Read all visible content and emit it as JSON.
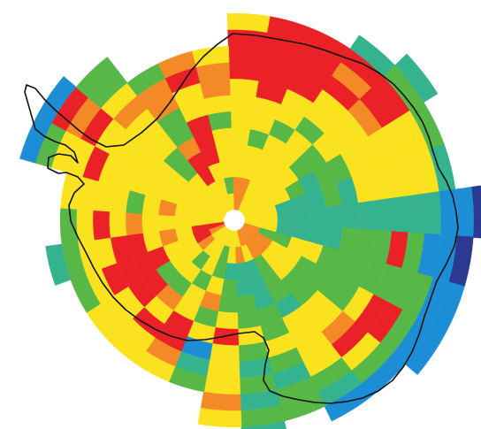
{
  "palette": {
    "yellow": "#fbe21f",
    "red": "#ea2228",
    "orange": "#f48a26",
    "green": "#58b847",
    "teal": "#35b38f",
    "blue": "#1b8ed6",
    "navy": "#2b3990"
  },
  "classes": [
    "red",
    "orange",
    "yellow",
    "green",
    "teal",
    "blue",
    "navy"
  ],
  "sectors": [
    {
      "a0": -92,
      "a1": -80,
      "rings": [
        "orange",
        "orange",
        "yellow",
        "yellow",
        "yellow",
        "yellow",
        "yellow",
        "yellow",
        "red",
        "red",
        "red",
        "yellow"
      ]
    },
    {
      "a0": -80,
      "a1": -68,
      "rings": [
        "orange",
        "orange",
        "yellow",
        "yellow",
        "green",
        "yellow",
        "yellow",
        "red",
        "red",
        "red",
        "red",
        "red"
      ]
    },
    {
      "a0": -68,
      "a1": -56,
      "rings": [
        "yellow",
        "yellow",
        "yellow",
        "yellow",
        "yellow",
        "green",
        "yellow",
        "yellow",
        "red",
        "red",
        "red",
        "red"
      ]
    },
    {
      "a0": -56,
      "a1": -44,
      "rings": [
        "yellow",
        "yellow",
        "yellow",
        "yellow",
        "yellow",
        "yellow",
        "green",
        "yellow",
        "yellow",
        "red",
        "orange",
        "red",
        "teal"
      ]
    },
    {
      "a0": -44,
      "a1": -32,
      "rings": [
        "yellow",
        "yellow",
        "yellow",
        "yellow",
        "green",
        "green",
        "yellow",
        "yellow",
        "yellow",
        "orange",
        "red",
        "red",
        "green",
        "teal"
      ]
    },
    {
      "a0": -32,
      "a1": -20,
      "rings": [
        "yellow",
        "yellow",
        "yellow",
        "green",
        "teal",
        "green",
        "green",
        "yellow",
        "yellow",
        "yellow",
        "yellow",
        "yellow",
        "green"
      ]
    },
    {
      "a0": -20,
      "a1": -8,
      "rings": [
        "yellow",
        "yellow",
        "teal",
        "teal",
        "teal",
        "green",
        "teal",
        "yellow",
        "yellow",
        "yellow",
        "yellow",
        "yellow",
        "teal"
      ]
    },
    {
      "a0": -8,
      "a1": 4,
      "rings": [
        "yellow",
        "yellow",
        "teal",
        "teal",
        "teal",
        "teal",
        "teal",
        "teal",
        "teal",
        "teal",
        "teal",
        "teal",
        "blue",
        "blue",
        "navy"
      ]
    },
    {
      "a0": 4,
      "a1": 16,
      "rings": [
        "yellow",
        "yellow",
        "teal",
        "teal",
        "teal",
        "teal",
        "green",
        "green",
        "green",
        "red",
        "green",
        "blue",
        "blue",
        "navy"
      ]
    },
    {
      "a0": 16,
      "a1": 28,
      "rings": [
        "orange",
        "green",
        "green",
        "yellow",
        "yellow",
        "green",
        "green",
        "green",
        "green",
        "green",
        "green",
        "green",
        "blue",
        "blue"
      ]
    },
    {
      "a0": 28,
      "a1": 40,
      "rings": [
        "orange",
        "orange",
        "yellow",
        "yellow",
        "green",
        "green",
        "green",
        "green",
        "yellow",
        "red",
        "red",
        "green",
        "blue",
        "blue"
      ]
    },
    {
      "a0": 40,
      "a1": 52,
      "rings": [
        "orange",
        "orange",
        "yellow",
        "yellow",
        "green",
        "green",
        "yellow",
        "yellow",
        "orange",
        "red",
        "yellow",
        "green",
        "blue"
      ]
    },
    {
      "a0": 52,
      "a1": 64,
      "rings": [
        "orange",
        "orange",
        "green",
        "green",
        "green",
        "teal",
        "yellow",
        "yellow",
        "yellow",
        "yellow",
        "green",
        "teal",
        "blue"
      ]
    },
    {
      "a0": 64,
      "a1": 76,
      "rings": [
        "orange",
        "yellow",
        "teal",
        "teal",
        "teal",
        "green",
        "green",
        "yellow",
        "green",
        "teal",
        "green",
        "green"
      ]
    },
    {
      "a0": 76,
      "a1": 88,
      "rings": [
        "yellow",
        "orange",
        "teal",
        "teal",
        "green",
        "green",
        "yellow",
        "green",
        "teal",
        "green",
        "teal",
        "green",
        "teal"
      ]
    },
    {
      "a0": 88,
      "a1": 100,
      "rings": [
        "yellow",
        "yellow",
        "teal",
        "green",
        "green",
        "yellow",
        "red",
        "yellow",
        "yellow",
        "yellow",
        "orange",
        "yellow"
      ]
    },
    {
      "a0": 100,
      "a1": 112,
      "rings": [
        "yellow",
        "green",
        "green",
        "yellow",
        "orange",
        "green",
        "yellow",
        "blue",
        "teal",
        "green"
      ]
    },
    {
      "a0": 112,
      "a1": 124,
      "rings": [
        "yellow",
        "yellow",
        "yellow",
        "green",
        "yellow",
        "yellow",
        "red",
        "red",
        "orange",
        "yellow"
      ]
    },
    {
      "a0": 124,
      "a1": 136,
      "rings": [
        "yellow",
        "yellow",
        "green",
        "yellow",
        "green",
        "orange",
        "yellow",
        "red",
        "yellow",
        "yellow"
      ]
    },
    {
      "a0": 136,
      "a1": 148,
      "rings": [
        "yellow",
        "orange",
        "yellow",
        "yellow",
        "green",
        "red",
        "red",
        "yellow",
        "yellow",
        "yellow"
      ]
    },
    {
      "a0": 148,
      "a1": 160,
      "rings": [
        "orange",
        "red",
        "yellow",
        "yellow",
        "red",
        "red",
        "red",
        "red",
        "yellow",
        "green"
      ]
    },
    {
      "a0": 160,
      "a1": 172,
      "rings": [
        "red",
        "red",
        "yellow",
        "orange",
        "yellow",
        "red",
        "red",
        "yellow",
        "yellow",
        "green",
        "teal"
      ]
    },
    {
      "a0": 172,
      "a1": 184,
      "rings": [
        "yellow",
        "yellow",
        "yellow",
        "yellow",
        "yellow",
        "orange",
        "yellow",
        "red",
        "yellow",
        "green"
      ]
    },
    {
      "a0": 184,
      "a1": 196,
      "rings": [
        "yellow",
        "yellow",
        "yellow",
        "orange",
        "yellow",
        "green",
        "yellow",
        "yellow",
        "yellow",
        "yellow"
      ]
    },
    {
      "a0": 196,
      "a1": 208,
      "rings": [
        "yellow",
        "yellow",
        "yellow",
        "yellow",
        "yellow",
        "yellow",
        "yellow",
        "yellow",
        "red",
        "yellow",
        "yellow",
        "green",
        "blue"
      ]
    },
    {
      "a0": 208,
      "a1": 220,
      "rings": [
        "yellow",
        "yellow",
        "yellow",
        "yellow",
        "yellow",
        "yellow",
        "yellow",
        "yellow",
        "yellow",
        "red",
        "orange",
        "red",
        "blue"
      ]
    },
    {
      "a0": 220,
      "a1": 232,
      "rings": [
        "yellow",
        "yellow",
        "yellow",
        "green",
        "green",
        "yellow",
        "yellow",
        "yellow",
        "orange",
        "yellow",
        "green",
        "green"
      ]
    },
    {
      "a0": 232,
      "a1": 244,
      "rings": [
        "yellow",
        "yellow",
        "red",
        "red",
        "orange",
        "green",
        "green",
        "orange",
        "orange",
        "green"
      ]
    },
    {
      "a0": 244,
      "a1": 256,
      "rings": [
        "yellow",
        "yellow",
        "yellow",
        "red",
        "red",
        "red",
        "yellow",
        "yellow",
        "red",
        "orange"
      ]
    },
    {
      "a0": 256,
      "a1": 268,
      "rings": [
        "yellow",
        "green",
        "yellow",
        "yellow",
        "yellow",
        "green",
        "yellow",
        "orange",
        "orange",
        "yellow"
      ]
    }
  ]
}
